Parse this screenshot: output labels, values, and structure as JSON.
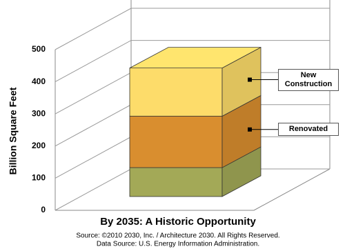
{
  "chart_data": {
    "type": "bar",
    "stacked": true,
    "title": "By 2035: A Historic Opportunity",
    "y_label": "Billion Square Feet",
    "ylim": [
      0,
      500
    ],
    "yticks": [
      0,
      100,
      200,
      300,
      400,
      500
    ],
    "series": [
      {
        "color": "#a3a957",
        "values": [
          90
        ]
      },
      {
        "name": "Renovated",
        "color": "#d98e2f",
        "values": [
          160
        ]
      },
      {
        "name": "New Construction",
        "color": "#fddc6a",
        "values": [
          150
        ]
      }
    ],
    "annotations": [
      "Source: ©2010 2030, Inc. / Architecture 2030. All Rights Reserved.",
      "Data Source: U.S. Energy Information Administration."
    ]
  }
}
